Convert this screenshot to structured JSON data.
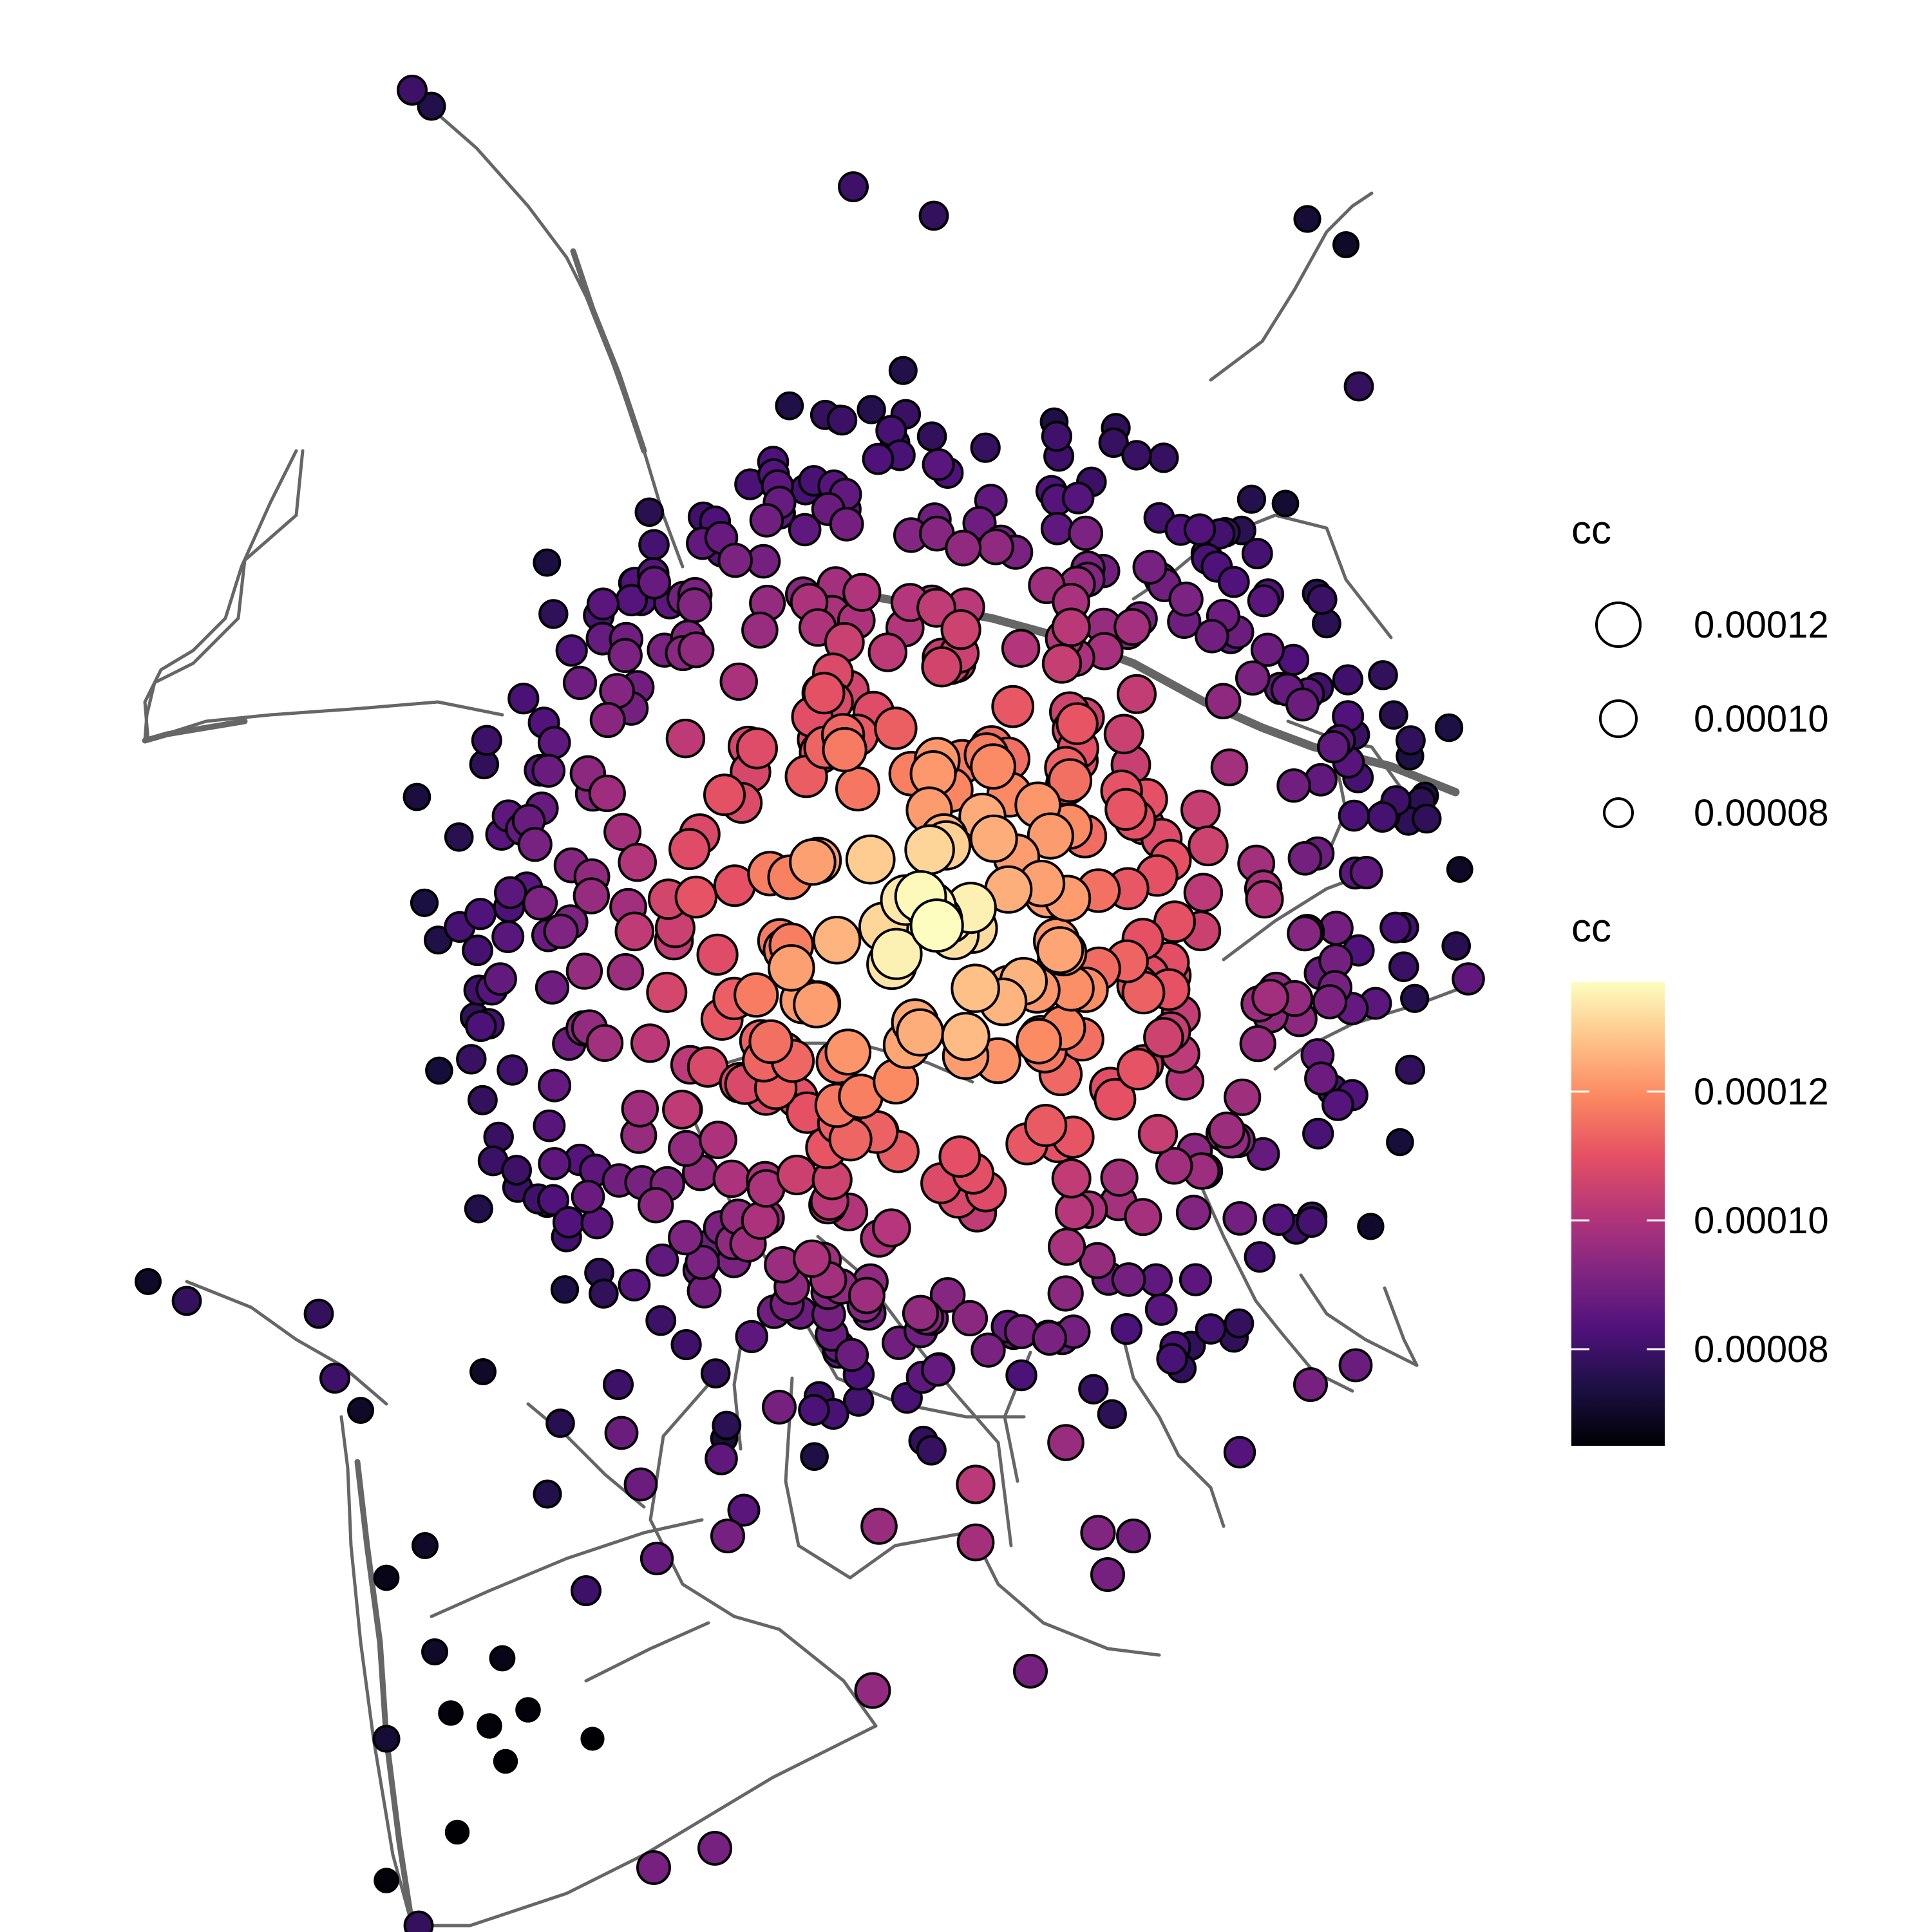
{
  "legend": {
    "size": {
      "title": "cc",
      "entries": [
        {
          "label": "0.00012",
          "value": 0.00012
        },
        {
          "label": "0.00010",
          "value": 0.0001
        },
        {
          "label": "0.00008",
          "value": 8e-05
        }
      ]
    },
    "color": {
      "title": "cc",
      "range": [
        6.5e-05,
        0.000137
      ],
      "ticks": [
        {
          "label": "0.00012",
          "value": 0.00012
        },
        {
          "label": "0.00010",
          "value": 0.0001
        },
        {
          "label": "0.00008",
          "value": 8e-05
        }
      ],
      "palette": [
        "#000004",
        "#1c1044",
        "#4f127b",
        "#812581",
        "#b5367a",
        "#e55064",
        "#fb8761",
        "#fec287",
        "#fcfdbf"
      ]
    }
  },
  "style": {
    "edge_color": "#666666",
    "node_stroke": "#000000"
  }
}
